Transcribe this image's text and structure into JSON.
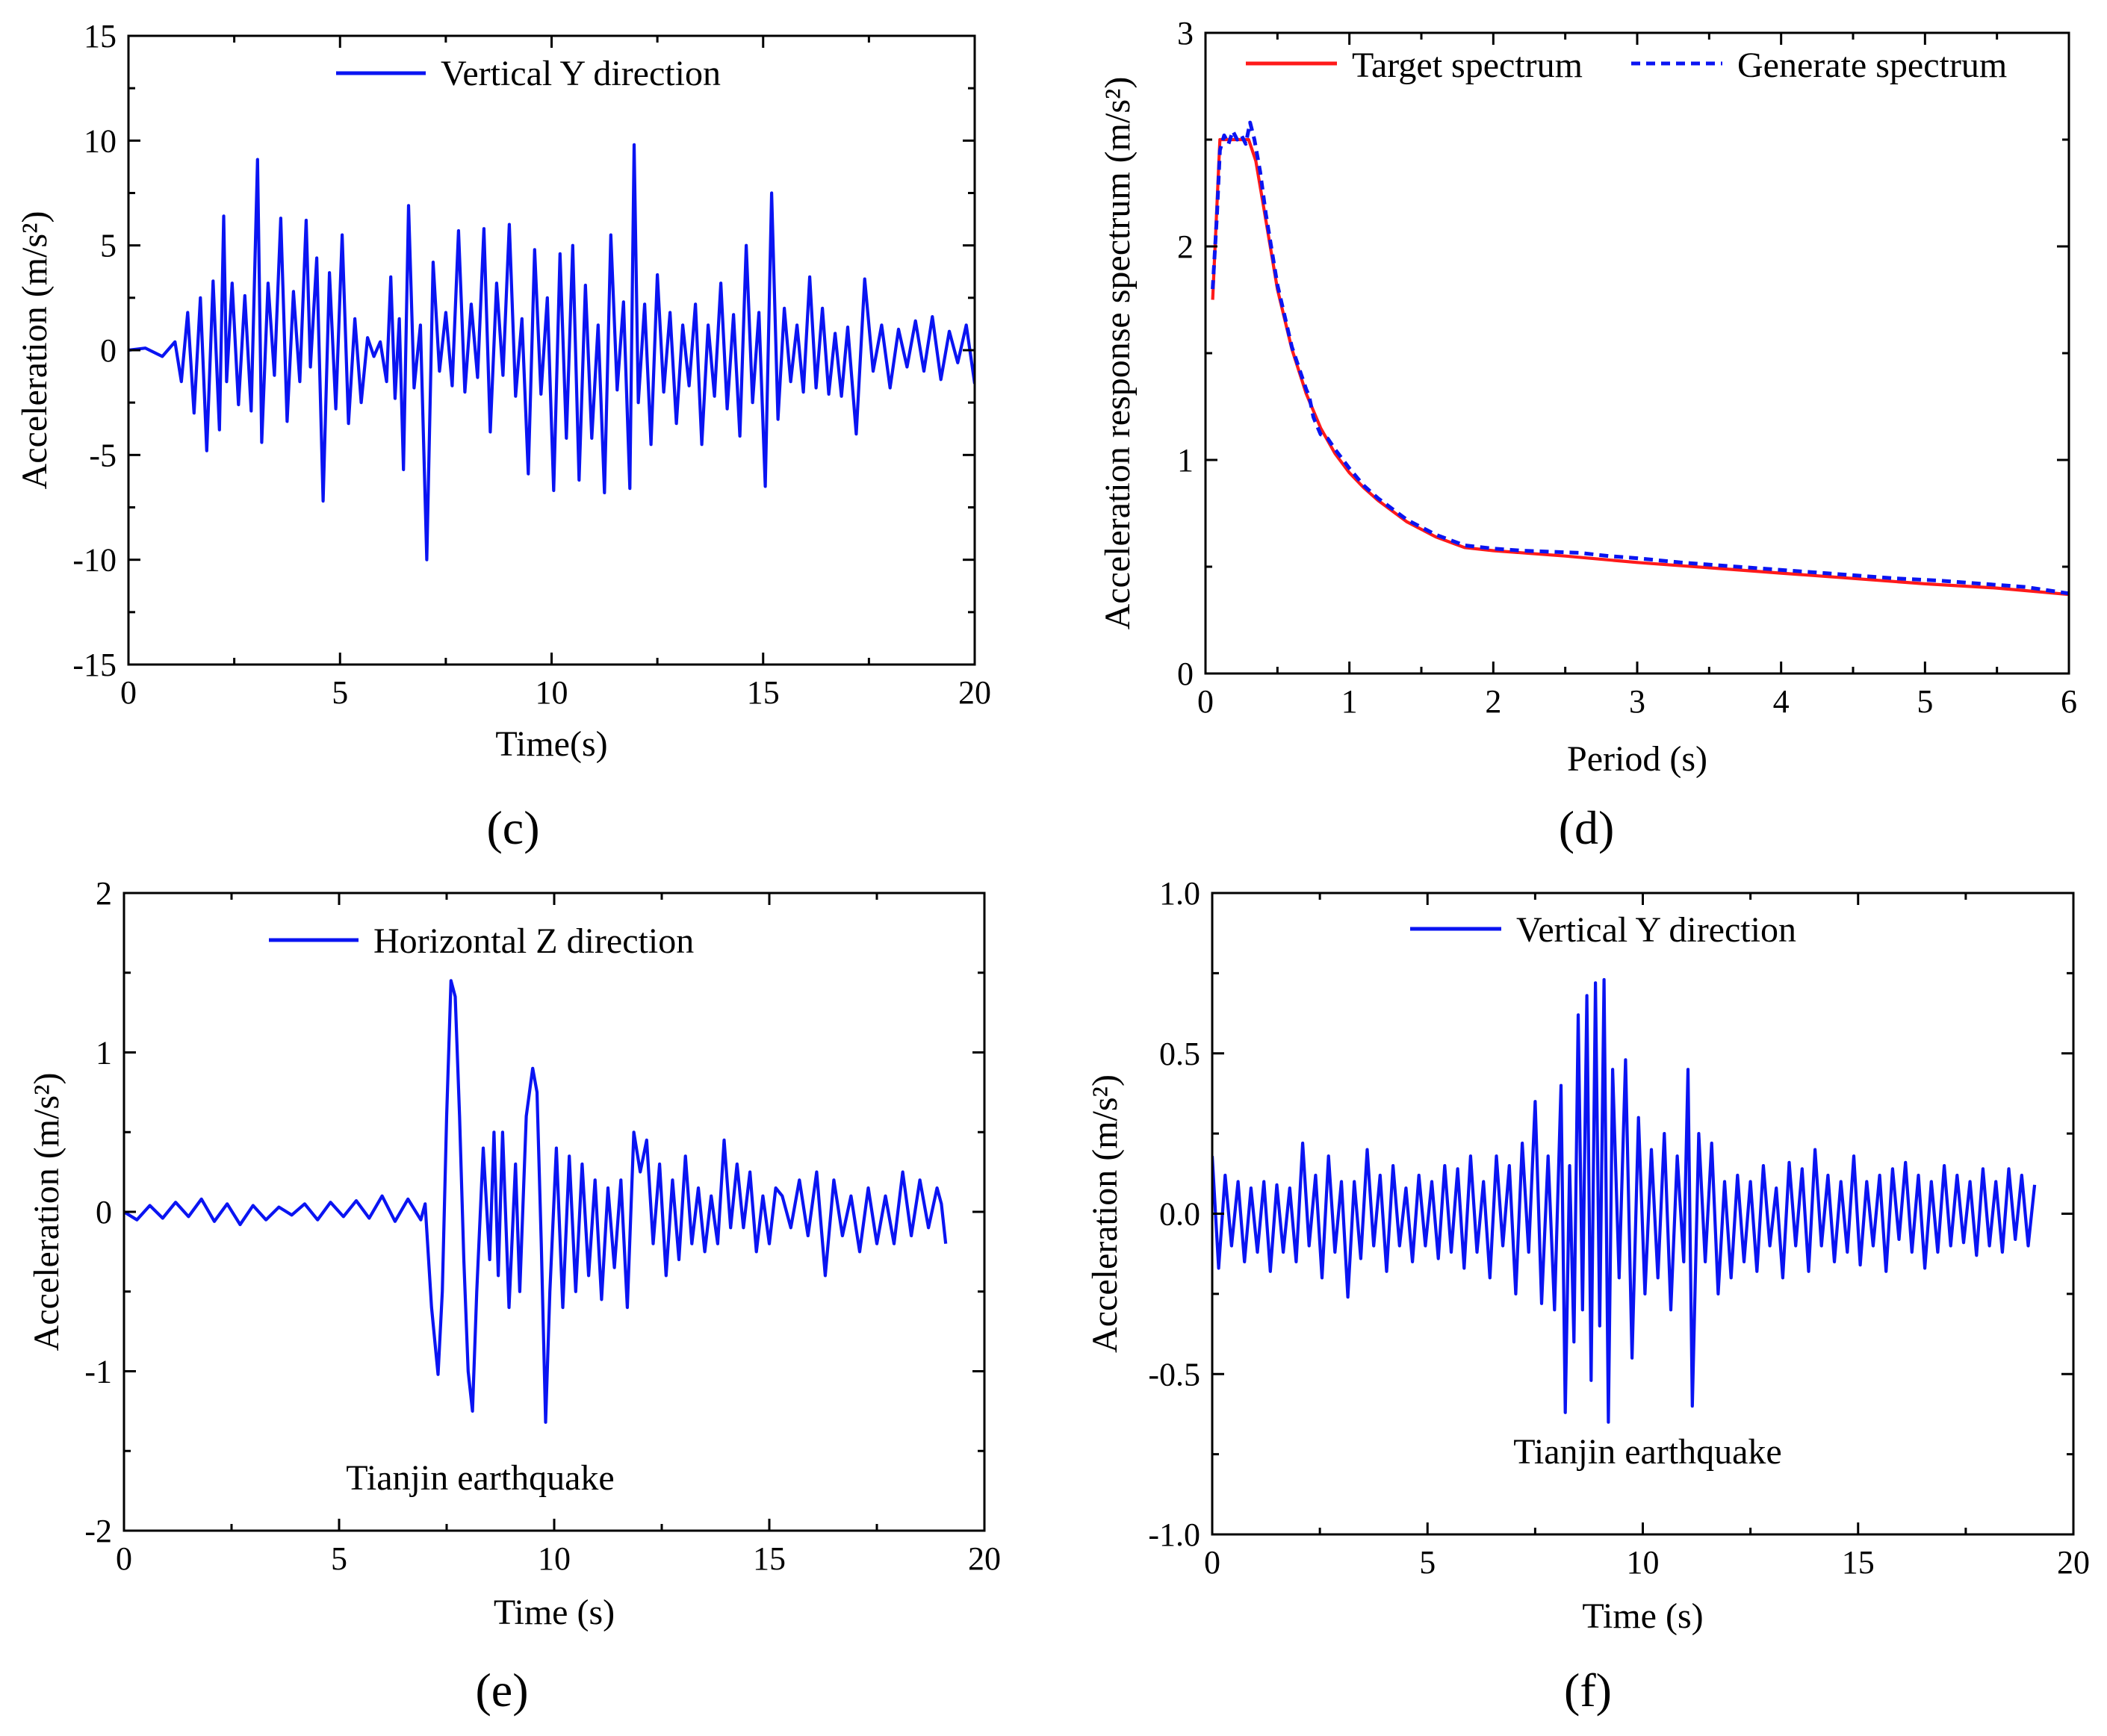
{
  "colors": {
    "blue": "#0a14f2",
    "red": "#ff1a1a",
    "axis": "#000000"
  },
  "chart_data": [
    {
      "id": "c",
      "panel_label": "(c)",
      "type": "line",
      "xlabel": "Time(s)",
      "ylabel": "Acceleration (m/s²)",
      "xlim": [
        0,
        20
      ],
      "ylim": [
        -15,
        15
      ],
      "xticks": [
        0,
        5,
        10,
        15,
        20
      ],
      "xtick_labels": [
        "0",
        "5",
        "10",
        "15",
        "20"
      ],
      "yticks": [
        -15,
        -10,
        -5,
        0,
        5,
        10,
        15
      ],
      "ytick_labels": [
        "-15",
        "-10",
        "-5",
        "0",
        "5",
        "10",
        "15"
      ],
      "legend_loc": "top-center",
      "annotation": "",
      "series": [
        {
          "name": "Vertical Y direction",
          "color": "#0a14f2",
          "dash": "solid",
          "x": [
            0,
            0.4,
            0.8,
            1.1,
            1.25,
            1.4,
            1.55,
            1.7,
            1.85,
            2.0,
            2.15,
            2.25,
            2.32,
            2.45,
            2.6,
            2.75,
            2.9,
            3.05,
            3.15,
            3.3,
            3.45,
            3.6,
            3.75,
            3.9,
            4.05,
            4.2,
            4.3,
            4.45,
            4.6,
            4.75,
            4.9,
            5.05,
            5.2,
            5.35,
            5.5,
            5.65,
            5.8,
            5.95,
            6.1,
            6.2,
            6.3,
            6.4,
            6.5,
            6.62,
            6.75,
            6.9,
            7.05,
            7.2,
            7.35,
            7.5,
            7.65,
            7.8,
            7.95,
            8.1,
            8.25,
            8.4,
            8.55,
            8.7,
            8.85,
            9.0,
            9.15,
            9.3,
            9.45,
            9.6,
            9.75,
            9.9,
            10.05,
            10.2,
            10.35,
            10.5,
            10.65,
            10.8,
            10.95,
            11.1,
            11.25,
            11.4,
            11.55,
            11.7,
            11.85,
            11.95,
            12.05,
            12.2,
            12.35,
            12.5,
            12.65,
            12.8,
            12.95,
            13.1,
            13.25,
            13.4,
            13.55,
            13.7,
            13.85,
            14.0,
            14.15,
            14.3,
            14.45,
            14.6,
            14.75,
            14.9,
            15.05,
            15.2,
            15.35,
            15.5,
            15.65,
            15.8,
            15.95,
            16.1,
            16.25,
            16.4,
            16.55,
            16.7,
            16.85,
            17.0,
            17.2,
            17.4,
            17.6,
            17.8,
            18.0,
            18.2,
            18.4,
            18.6,
            18.8,
            19.0,
            19.2,
            19.4,
            19.6,
            19.8,
            20.0
          ],
          "y": [
            0,
            0.1,
            -0.3,
            0.4,
            -1.5,
            1.8,
            -3.0,
            2.5,
            -4.8,
            3.3,
            -3.8,
            6.4,
            -1.5,
            3.2,
            -2.6,
            2.6,
            -2.9,
            9.1,
            -4.4,
            3.2,
            -1.2,
            6.3,
            -3.4,
            2.8,
            -1.5,
            6.2,
            -0.8,
            4.4,
            -7.2,
            3.7,
            -2.8,
            5.5,
            -3.5,
            1.5,
            -2.5,
            0.6,
            -0.3,
            0.4,
            -1.5,
            3.5,
            -2.3,
            1.5,
            -5.7,
            6.9,
            -1.8,
            1.2,
            -10.0,
            4.2,
            -1.0,
            1.8,
            -1.7,
            5.7,
            -2.0,
            2.2,
            -1.3,
            5.8,
            -3.9,
            3.2,
            -1.2,
            6.0,
            -2.2,
            1.5,
            -5.9,
            4.8,
            -2.1,
            2.5,
            -6.7,
            4.6,
            -4.2,
            5.0,
            -6.2,
            3.1,
            -4.2,
            1.2,
            -6.8,
            5.5,
            -1.9,
            2.3,
            -6.6,
            9.8,
            -2.5,
            2.2,
            -4.5,
            3.6,
            -2.0,
            1.8,
            -3.5,
            1.2,
            -1.7,
            2.2,
            -4.5,
            1.2,
            -2.2,
            3.2,
            -2.8,
            1.7,
            -4.1,
            5.0,
            -2.5,
            1.8,
            -6.5,
            7.5,
            -3.3,
            2.0,
            -1.5,
            1.2,
            -2.0,
            3.5,
            -1.8,
            2.0,
            -2.1,
            0.8,
            -2.2,
            1.1,
            -4.0,
            3.4,
            -1.0,
            1.2,
            -1.8,
            1.0,
            -0.8,
            1.4,
            -1.0,
            1.6,
            -1.4,
            0.9,
            -0.6,
            1.2,
            -1.6
          ]
        }
      ]
    },
    {
      "id": "d",
      "panel_label": "(d)",
      "type": "line",
      "xlabel": "Period (s)",
      "ylabel": "Acceleration response spectrum (m/s²)",
      "xlim": [
        0,
        6
      ],
      "ylim": [
        0,
        3
      ],
      "xticks": [
        0,
        1,
        2,
        3,
        4,
        5,
        6
      ],
      "xtick_labels": [
        "0",
        "1",
        "2",
        "3",
        "4",
        "5",
        "6"
      ],
      "yticks": [
        0,
        1,
        2,
        3
      ],
      "ytick_labels": [
        "0",
        "1",
        "2",
        "3"
      ],
      "legend_loc": "top",
      "annotation": "",
      "series": [
        {
          "name": "Target spectrum",
          "color": "#ff1a1a",
          "dash": "solid",
          "x": [
            0.05,
            0.1,
            0.15,
            0.3,
            0.35,
            0.4,
            0.5,
            0.6,
            0.7,
            0.8,
            0.9,
            1.0,
            1.1,
            1.2,
            1.4,
            1.6,
            1.8,
            2.0,
            2.5,
            3.0,
            3.5,
            4.0,
            4.5,
            5.0,
            5.5,
            6.0
          ],
          "y": [
            1.75,
            2.5,
            2.5,
            2.5,
            2.4,
            2.2,
            1.8,
            1.52,
            1.31,
            1.15,
            1.03,
            0.94,
            0.87,
            0.81,
            0.71,
            0.64,
            0.59,
            0.575,
            0.55,
            0.52,
            0.495,
            0.47,
            0.445,
            0.42,
            0.4,
            0.37
          ]
        },
        {
          "name": "Generate spectrum",
          "color": "#0a14f2",
          "dash": "dashed",
          "x": [
            0.05,
            0.08,
            0.1,
            0.13,
            0.16,
            0.19,
            0.22,
            0.25,
            0.28,
            0.31,
            0.34,
            0.38,
            0.42,
            0.5,
            0.6,
            0.7,
            0.72,
            0.75,
            0.8,
            0.85,
            0.9,
            1.0,
            1.1,
            1.2,
            1.4,
            1.6,
            1.8,
            2.0,
            2.2,
            2.4,
            2.6,
            2.8,
            3.0,
            3.3,
            3.6,
            3.9,
            4.2,
            4.5,
            4.8,
            5.1,
            5.4,
            5.7,
            6.0
          ],
          "y": [
            1.8,
            2.15,
            2.45,
            2.52,
            2.48,
            2.54,
            2.5,
            2.52,
            2.48,
            2.58,
            2.5,
            2.35,
            2.15,
            1.82,
            1.53,
            1.33,
            1.3,
            1.2,
            1.12,
            1.1,
            1.05,
            0.96,
            0.88,
            0.82,
            0.72,
            0.65,
            0.6,
            0.585,
            0.575,
            0.57,
            0.565,
            0.55,
            0.54,
            0.52,
            0.505,
            0.49,
            0.475,
            0.46,
            0.445,
            0.435,
            0.42,
            0.405,
            0.375
          ]
        }
      ]
    },
    {
      "id": "e",
      "panel_label": "(e)",
      "type": "line",
      "xlabel": "Time (s)",
      "ylabel": "Acceleration (m/s²)",
      "xlim": [
        0,
        20
      ],
      "ylim": [
        -2,
        2
      ],
      "xticks": [
        0,
        5,
        10,
        15,
        20
      ],
      "xtick_labels": [
        "0",
        "5",
        "10",
        "15",
        "20"
      ],
      "yticks": [
        -2,
        -1,
        0,
        1,
        2
      ],
      "ytick_labels": [
        "-2",
        "-1",
        "0",
        "1",
        "2"
      ],
      "legend_loc": "top-center",
      "annotation": "Tianjin earthquake",
      "series": [
        {
          "name": "Horizontal Z direction",
          "color": "#0a14f2",
          "dash": "solid",
          "x": [
            0,
            0.3,
            0.6,
            0.9,
            1.2,
            1.5,
            1.8,
            2.1,
            2.4,
            2.7,
            3.0,
            3.3,
            3.6,
            3.9,
            4.2,
            4.5,
            4.8,
            5.1,
            5.4,
            5.7,
            6.0,
            6.3,
            6.6,
            6.9,
            7.0,
            7.15,
            7.3,
            7.4,
            7.5,
            7.6,
            7.7,
            7.8,
            7.9,
            8.0,
            8.1,
            8.2,
            8.35,
            8.5,
            8.6,
            8.7,
            8.8,
            8.95,
            9.1,
            9.2,
            9.35,
            9.5,
            9.6,
            9.7,
            9.8,
            9.9,
            10.05,
            10.2,
            10.35,
            10.5,
            10.65,
            10.8,
            10.95,
            11.1,
            11.25,
            11.4,
            11.55,
            11.7,
            11.85,
            12.0,
            12.15,
            12.3,
            12.45,
            12.6,
            12.75,
            12.9,
            13.05,
            13.2,
            13.35,
            13.5,
            13.65,
            13.8,
            13.95,
            14.1,
            14.25,
            14.4,
            14.55,
            14.7,
            14.85,
            15.0,
            15.15,
            15.3,
            15.5,
            15.7,
            15.9,
            16.1,
            16.3,
            16.5,
            16.7,
            16.9,
            17.1,
            17.3,
            17.5,
            17.7,
            17.9,
            18.1,
            18.3,
            18.5,
            18.7,
            18.9,
            19.0,
            19.1
          ],
          "y": [
            0,
            -0.05,
            0.04,
            -0.04,
            0.06,
            -0.03,
            0.08,
            -0.06,
            0.05,
            -0.08,
            0.04,
            -0.05,
            0.03,
            -0.02,
            0.05,
            -0.05,
            0.06,
            -0.03,
            0.07,
            -0.04,
            0.1,
            -0.06,
            0.08,
            -0.05,
            0.05,
            -0.6,
            -1.02,
            -0.5,
            0.6,
            1.45,
            1.35,
            0.6,
            -0.3,
            -1.0,
            -1.25,
            -0.5,
            0.4,
            -0.3,
            0.5,
            -0.4,
            0.5,
            -0.6,
            0.3,
            -0.5,
            0.6,
            0.9,
            0.75,
            -0.2,
            -1.32,
            -0.5,
            0.4,
            -0.6,
            0.35,
            -0.5,
            0.3,
            -0.4,
            0.2,
            -0.55,
            0.15,
            -0.35,
            0.2,
            -0.6,
            0.5,
            0.25,
            0.45,
            -0.2,
            0.3,
            -0.4,
            0.2,
            -0.3,
            0.35,
            -0.2,
            0.15,
            -0.25,
            0.1,
            -0.2,
            0.45,
            -0.1,
            0.3,
            -0.1,
            0.25,
            -0.25,
            0.1,
            -0.2,
            0.15,
            0.1,
            -0.1,
            0.2,
            -0.15,
            0.25,
            -0.4,
            0.2,
            -0.15,
            0.1,
            -0.25,
            0.15,
            -0.2,
            0.1,
            -0.2,
            0.25,
            -0.15,
            0.2,
            -0.1,
            0.15,
            0.05,
            -0.2
          ]
        }
      ]
    },
    {
      "id": "f",
      "panel_label": "(f)",
      "type": "line",
      "xlabel": "Time (s)",
      "ylabel": "Acceleration (m/s²)",
      "xlim": [
        0,
        20
      ],
      "ylim": [
        -1.0,
        1.0
      ],
      "xticks": [
        0,
        5,
        10,
        15,
        20
      ],
      "xtick_labels": [
        "0",
        "5",
        "10",
        "15",
        "20"
      ],
      "yticks": [
        -1.0,
        -0.5,
        0.0,
        0.5,
        1.0
      ],
      "ytick_labels": [
        "-1.0",
        "-0.5",
        "0.0",
        "0.5",
        "1.0"
      ],
      "legend_loc": "top-center",
      "annotation": "Tianjin earthquake",
      "series": [
        {
          "name": "Vertical Y direction",
          "color": "#0a14f2",
          "dash": "solid",
          "x": [
            0,
            0.15,
            0.3,
            0.45,
            0.6,
            0.75,
            0.9,
            1.05,
            1.2,
            1.35,
            1.5,
            1.65,
            1.8,
            1.95,
            2.1,
            2.25,
            2.4,
            2.55,
            2.7,
            2.85,
            3.0,
            3.15,
            3.3,
            3.45,
            3.6,
            3.75,
            3.9,
            4.05,
            4.2,
            4.35,
            4.5,
            4.65,
            4.8,
            4.95,
            5.1,
            5.25,
            5.4,
            5.55,
            5.7,
            5.85,
            6.0,
            6.15,
            6.3,
            6.45,
            6.6,
            6.75,
            6.9,
            7.05,
            7.2,
            7.35,
            7.5,
            7.65,
            7.8,
            7.95,
            8.1,
            8.2,
            8.3,
            8.4,
            8.5,
            8.6,
            8.7,
            8.8,
            8.9,
            9.0,
            9.1,
            9.2,
            9.3,
            9.45,
            9.6,
            9.75,
            9.9,
            10.05,
            10.2,
            10.35,
            10.5,
            10.65,
            10.8,
            10.95,
            11.05,
            11.15,
            11.3,
            11.45,
            11.6,
            11.75,
            11.9,
            12.05,
            12.2,
            12.35,
            12.5,
            12.65,
            12.8,
            12.95,
            13.1,
            13.25,
            13.4,
            13.55,
            13.7,
            13.85,
            14.0,
            14.15,
            14.3,
            14.45,
            14.6,
            14.75,
            14.9,
            15.05,
            15.2,
            15.35,
            15.5,
            15.65,
            15.8,
            15.95,
            16.1,
            16.25,
            16.4,
            16.55,
            16.7,
            16.85,
            17.0,
            17.15,
            17.3,
            17.45,
            17.6,
            17.75,
            17.9,
            18.05,
            18.2,
            18.35,
            18.5,
            18.65,
            18.8,
            18.95,
            19.1
          ],
          "y": [
            0.18,
            -0.17,
            0.12,
            -0.1,
            0.1,
            -0.15,
            0.08,
            -0.12,
            0.1,
            -0.18,
            0.09,
            -0.12,
            0.08,
            -0.15,
            0.22,
            -0.1,
            0.12,
            -0.2,
            0.18,
            -0.12,
            0.1,
            -0.26,
            0.1,
            -0.14,
            0.2,
            -0.1,
            0.12,
            -0.18,
            0.15,
            -0.1,
            0.08,
            -0.15,
            0.12,
            -0.1,
            0.1,
            -0.14,
            0.15,
            -0.12,
            0.14,
            -0.17,
            0.18,
            -0.12,
            0.1,
            -0.2,
            0.18,
            -0.1,
            0.15,
            -0.25,
            0.22,
            -0.12,
            0.35,
            -0.28,
            0.18,
            -0.3,
            0.4,
            -0.62,
            0.15,
            -0.4,
            0.62,
            -0.3,
            0.68,
            -0.52,
            0.72,
            -0.35,
            0.73,
            -0.65,
            0.45,
            -0.2,
            0.48,
            -0.45,
            0.3,
            -0.25,
            0.2,
            -0.2,
            0.25,
            -0.3,
            0.18,
            -0.15,
            0.45,
            -0.6,
            0.25,
            -0.15,
            0.22,
            -0.25,
            0.1,
            -0.2,
            0.12,
            -0.15,
            0.1,
            -0.18,
            0.15,
            -0.1,
            0.08,
            -0.2,
            0.16,
            -0.1,
            0.14,
            -0.18,
            0.2,
            -0.1,
            0.12,
            -0.15,
            0.1,
            -0.12,
            0.18,
            -0.16,
            0.1,
            -0.1,
            0.12,
            -0.18,
            0.14,
            -0.08,
            0.16,
            -0.12,
            0.12,
            -0.17,
            0.1,
            -0.12,
            0.15,
            -0.1,
            0.12,
            -0.09,
            0.1,
            -0.13,
            0.14,
            -0.1,
            0.1,
            -0.12,
            0.14,
            -0.08,
            0.12,
            -0.1,
            0.09
          ]
        }
      ]
    }
  ]
}
